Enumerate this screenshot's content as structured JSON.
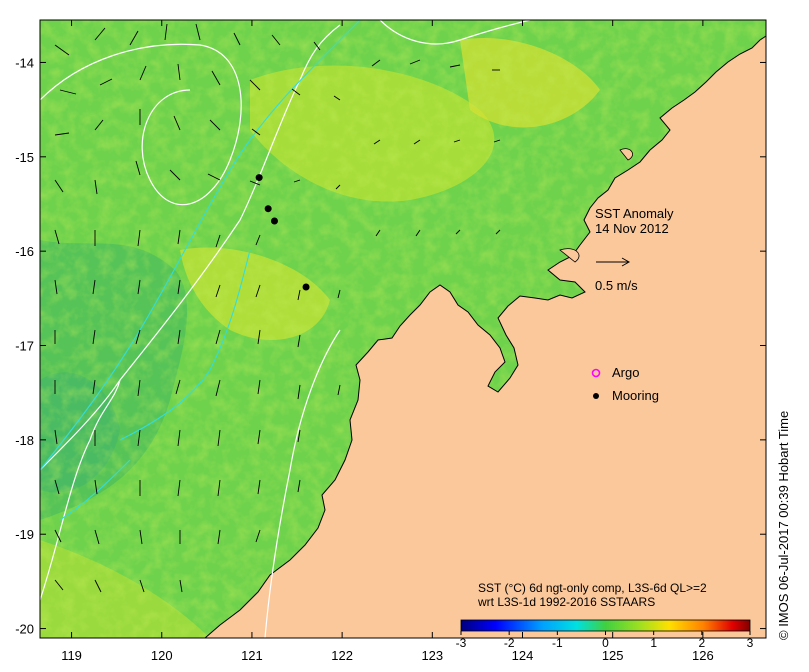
{
  "map": {
    "title": "SST Anomaly",
    "date": "14 Nov 2012",
    "vector_scale_label": "0.5 m/s",
    "legend": [
      {
        "label": "Argo",
        "color": "#ff00ff",
        "marker": "open-circle"
      },
      {
        "label": "Mooring",
        "color": "#000000",
        "marker": "filled-circle"
      }
    ],
    "x_ticks": [
      "119",
      "120",
      "121",
      "122",
      "123",
      "124",
      "125",
      "126"
    ],
    "y_ticks": [
      "-14",
      "-15",
      "-16",
      "-17",
      "-18",
      "-19",
      "-20"
    ],
    "x_range": [
      118.65,
      126.7
    ],
    "y_range": [
      -20.1,
      -13.55
    ],
    "moorings": [
      {
        "lon": 121.08,
        "lat": -15.22
      },
      {
        "lon": 121.18,
        "lat": -15.55
      },
      {
        "lon": 121.25,
        "lat": -15.68
      },
      {
        "lon": 121.6,
        "lat": -16.38
      }
    ],
    "colorbar": {
      "line1": "SST (°C) 6d ngt-only comp, L3S-6d QL>=2",
      "line2": "wrt L3S-1d 1992-2016 SSTAARS",
      "ticks": [
        "-3",
        "-2",
        "-1",
        "0",
        "1",
        "2",
        "3"
      ],
      "range": [
        -3,
        3
      ]
    },
    "credit": "© IMOS 06-Jul-2017 00:39 Hobart Time",
    "colors": {
      "land": "#fbc89b",
      "ocean": "#6ed24a",
      "contour": "#ffffff",
      "bathymetry": "#33dddd"
    }
  }
}
